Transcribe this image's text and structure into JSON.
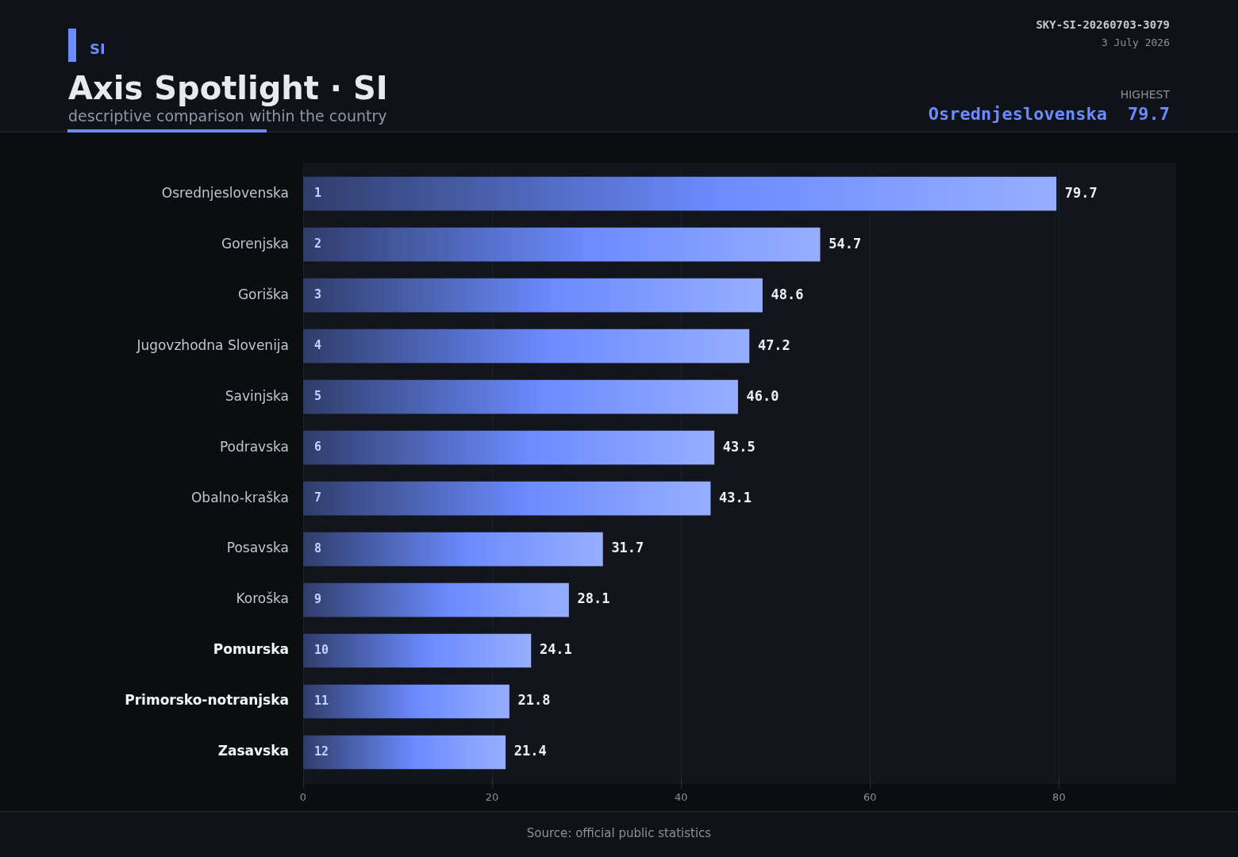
{
  "chart_data": {
    "type": "bar",
    "orientation": "horizontal",
    "title": "Axis Spotlight · SI",
    "subtitle": "descriptive comparison within the country",
    "categories": [
      "Osrednjeslovenska",
      "Gorenjska",
      "Goriška",
      "Jugovzhodna Slovenija",
      "Savinjska",
      "Podravska",
      "Obalno-kraška",
      "Posavska",
      "Koroška",
      "Pomurska",
      "Primorsko-notranjska",
      "Zasavska"
    ],
    "values": [
      79.7,
      54.7,
      48.6,
      47.2,
      46.0,
      43.5,
      43.1,
      31.7,
      28.1,
      24.1,
      21.8,
      21.4
    ],
    "value_labels": [
      "79.7",
      "54.7",
      "48.6",
      "47.2",
      "46.0",
      "43.5",
      "43.1",
      "31.7",
      "28.1",
      "24.1",
      "21.8",
      "21.4"
    ],
    "color": "#6b8bff",
    "xlim": [
      0,
      92.4
    ],
    "xticks": [
      0,
      20,
      40,
      60,
      80
    ],
    "grid": "x",
    "legend": false,
    "annotations": [
      "SI",
      "SKY-SI-20260703-3079",
      "3 July 2026",
      "HIGHEST",
      "Osrednjeslovenska",
      "79.7",
      "Source: official public statistics",
      {
        "text": "1",
        "y": "Osrednjeslovenska"
      },
      {
        "text": "2",
        "y": "Gorenjska"
      },
      {
        "text": "3",
        "y": "Goriška"
      },
      {
        "text": "4",
        "y": "Jugovzhodna Slovenija"
      },
      {
        "text": "5",
        "y": "Savinjska"
      },
      {
        "text": "6",
        "y": "Podravska"
      },
      {
        "text": "7",
        "y": "Obalno-kraška"
      },
      {
        "text": "8",
        "y": "Posavska"
      },
      {
        "text": "9",
        "y": "Koroška"
      },
      {
        "text": "10",
        "y": "Pomurska"
      },
      {
        "text": "11",
        "y": "Primorsko-notranjska"
      },
      {
        "text": "12",
        "y": "Zasavska"
      }
    ]
  }
}
